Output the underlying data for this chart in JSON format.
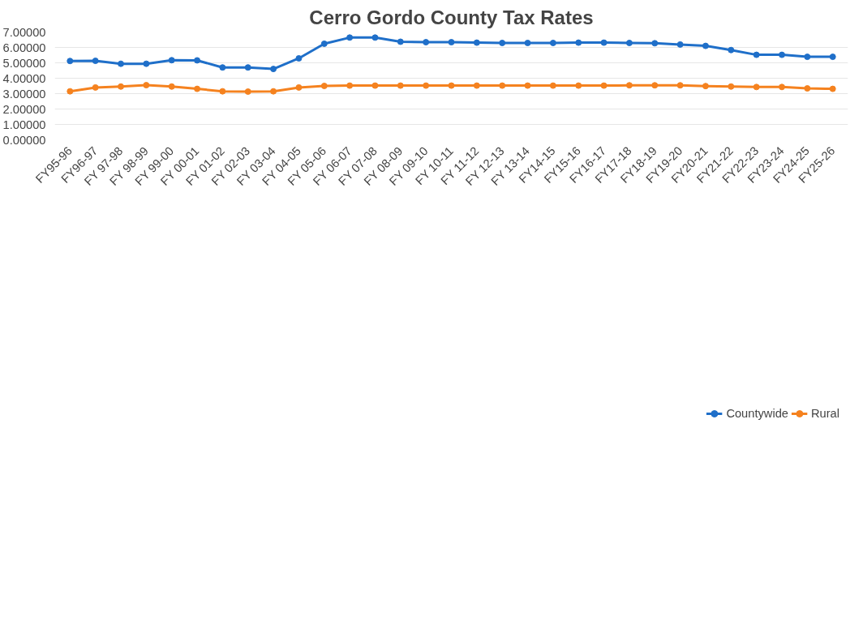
{
  "chart_data": {
    "type": "line",
    "title": "Cerro Gordo County Tax Rates",
    "categories": [
      "FY95-96",
      "FY96-97",
      "FY 97-98",
      "FY 98-99",
      "FY 99-00",
      "FY 00-01",
      "FY 01-02",
      "FY 02-03",
      "FY 03-04",
      "FY 04-05",
      "FY 05-06",
      "FY 06-07",
      "FY 07-08",
      "FY 08-09",
      "FY 09-10",
      "FY 10-11",
      "FY 11-12",
      "FY 12-13",
      "FY 13-14",
      "FY14-15",
      "FY15-16",
      "FY16-17",
      "FY17-18",
      "FY18-19",
      "FY19-20",
      "FY20-21",
      "FY21-22",
      "FY22-23",
      "FY23-24",
      "FY24-25",
      "FY25-26"
    ],
    "series": [
      {
        "name": "Countywide",
        "color": "#1f6fc9",
        "values": [
          5.12,
          5.13,
          4.94,
          4.94,
          5.17,
          5.16,
          4.7,
          4.7,
          4.6,
          5.29,
          6.24,
          6.64,
          6.64,
          6.37,
          6.34,
          6.34,
          6.31,
          6.29,
          6.29,
          6.29,
          6.31,
          6.31,
          6.29,
          6.27,
          6.19,
          6.1,
          5.83,
          5.52,
          5.52,
          5.39,
          5.39
        ]
      },
      {
        "name": "Rural",
        "color": "#f5821f",
        "values": [
          3.15,
          3.4,
          3.46,
          3.55,
          3.46,
          3.31,
          3.15,
          3.13,
          3.15,
          3.4,
          3.5,
          3.52,
          3.52,
          3.52,
          3.52,
          3.52,
          3.52,
          3.52,
          3.52,
          3.52,
          3.52,
          3.52,
          3.54,
          3.54,
          3.54,
          3.49,
          3.46,
          3.43,
          3.43,
          3.34,
          3.31
        ]
      }
    ],
    "ylim": [
      0,
      7
    ],
    "yticks": [
      {
        "value": 0,
        "label": "0.00000"
      },
      {
        "value": 1,
        "label": "1.00000"
      },
      {
        "value": 2,
        "label": "2.00000"
      },
      {
        "value": 3,
        "label": "3.00000"
      },
      {
        "value": 4,
        "label": "4.00000"
      },
      {
        "value": 5,
        "label": "5.00000"
      },
      {
        "value": 6,
        "label": "6.00000"
      },
      {
        "value": 7,
        "label": "7.00000"
      }
    ],
    "grid": "y",
    "legend": "bottom",
    "marker": "circle",
    "line_style": "solid"
  }
}
